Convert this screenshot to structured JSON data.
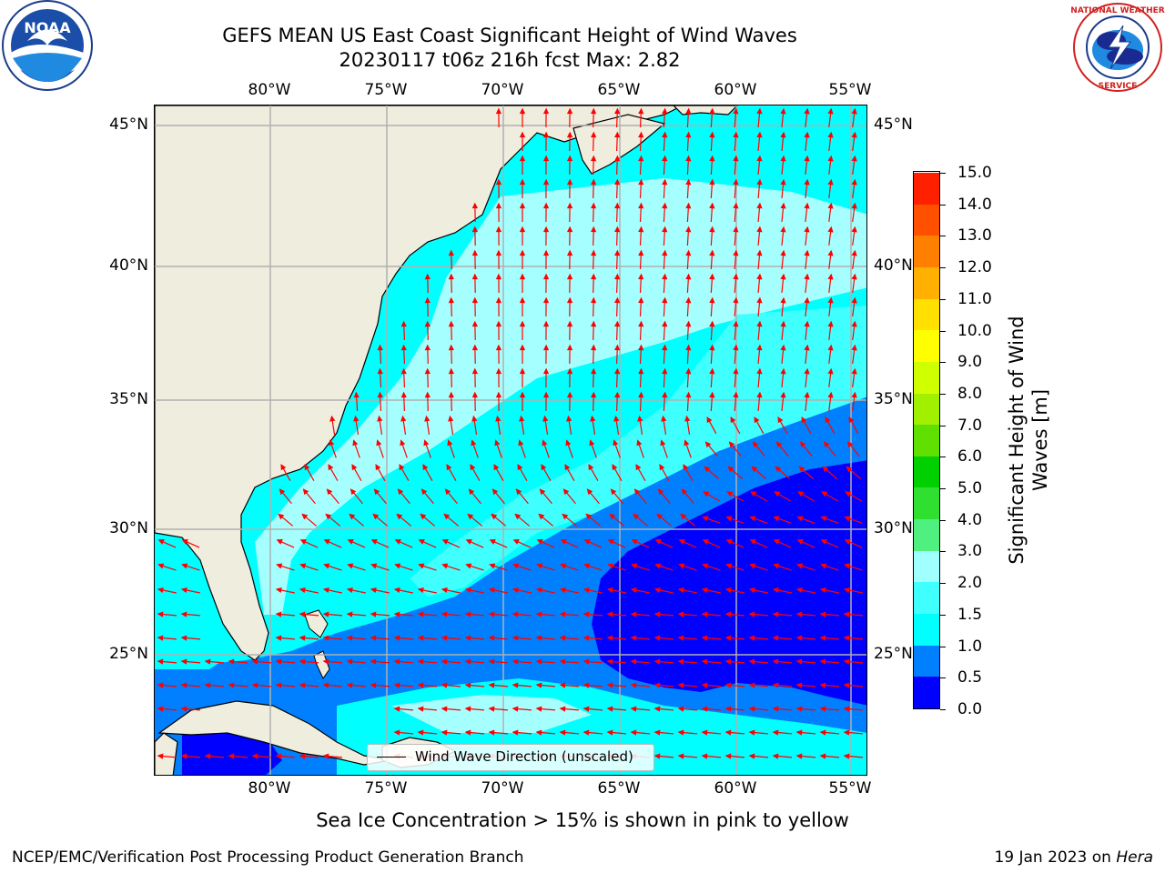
{
  "title": {
    "line1": "GEFS MEAN US East Coast Significant Height of Wind Waves",
    "line2": "20230117 t06z 216h fcst   Max: 2.82"
  },
  "logos": {
    "left": "noaa-logo",
    "left_text": "NOAA",
    "right": "national-weather-service-logo",
    "right_text": "NATIONAL WEATHER SERVICE"
  },
  "axes": {
    "lon_labels": [
      "80°W",
      "75°W",
      "70°W",
      "65°W",
      "60°W",
      "55°W"
    ],
    "lat_labels": [
      "45°N",
      "40°N",
      "35°N",
      "30°N",
      "25°N"
    ]
  },
  "colorbar": {
    "label_line1": "Significant Height of Wind",
    "label_line2": "Waves [m]",
    "ticks": [
      "0.0",
      "0.5",
      "1.0",
      "1.5",
      "2.0",
      "3.0",
      "4.0",
      "5.0",
      "6.0",
      "7.0",
      "8.0",
      "9.0",
      "10.0",
      "11.0",
      "12.0",
      "13.0",
      "14.0",
      "15.0"
    ],
    "colors": [
      "#0000ff",
      "#0080ff",
      "#00ffff",
      "#40ffff",
      "#a0ffff",
      "#50f080",
      "#30e030",
      "#00d000",
      "#60e000",
      "#a0f000",
      "#d0ff00",
      "#ffff00",
      "#ffe000",
      "#ffb000",
      "#ff8000",
      "#ff5000",
      "#ff2000",
      "#ff0000"
    ]
  },
  "map": {
    "land_color": "#efedde",
    "arrow_color": "#ff0000",
    "grid_color": "#b0b0b0"
  },
  "legend": {
    "text": "Wind Wave Direction (unscaled)"
  },
  "ice_note": "Sea Ice Concentration > 15% is shown in pink to yellow",
  "footer": {
    "left": "NCEP/EMC/Verification Post Processing Product Generation Branch",
    "date": "19 Jan 2023 on ",
    "machine": "Hera"
  }
}
